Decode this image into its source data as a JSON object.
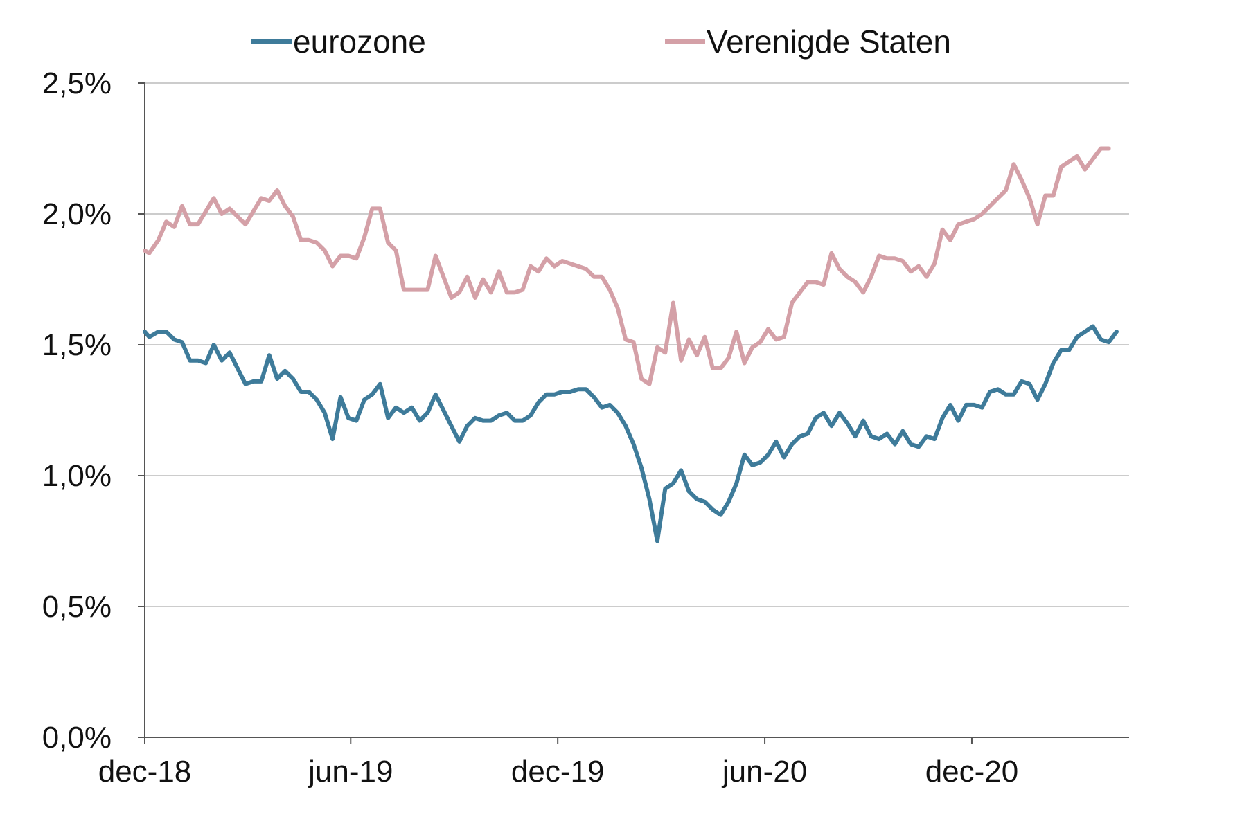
{
  "chart_data": {
    "type": "line",
    "title": "",
    "xlabel": "",
    "ylabel": "",
    "ylim": [
      0,
      0.025
    ],
    "y_ticks": [
      0,
      0.005,
      0.01,
      0.015,
      0.02,
      0.025
    ],
    "y_tick_labels": [
      "0,0%",
      "0,5%",
      "1,0%",
      "1,5%",
      "2,0%",
      "2,5%"
    ],
    "x_range": [
      "2018-12-01",
      "2021-04-19"
    ],
    "x_ticks": [
      "2018-12-01",
      "2019-06-01",
      "2019-12-01",
      "2020-06-01",
      "2020-12-01"
    ],
    "x_tick_labels": [
      "dec-18",
      "jun-19",
      "dec-19",
      "jun-20",
      "dec-20"
    ],
    "grid": true,
    "legend_position": "top",
    "series": [
      {
        "name": "eurozone",
        "color": "#3e7b9a",
        "points": [
          [
            "2018-12-01",
            0.0155
          ],
          [
            "2018-12-05",
            0.0153
          ],
          [
            "2018-12-13",
            0.0155
          ],
          [
            "2018-12-20",
            0.0155
          ],
          [
            "2018-12-27",
            0.0152
          ],
          [
            "2019-01-03",
            0.0151
          ],
          [
            "2019-01-10",
            0.0144
          ],
          [
            "2019-01-17",
            0.0144
          ],
          [
            "2019-01-24",
            0.0143
          ],
          [
            "2019-01-31",
            0.015
          ],
          [
            "2019-02-07",
            0.0144
          ],
          [
            "2019-02-14",
            0.0147
          ],
          [
            "2019-02-21",
            0.0141
          ],
          [
            "2019-02-28",
            0.0135
          ],
          [
            "2019-03-07",
            0.0136
          ],
          [
            "2019-03-14",
            0.0136
          ],
          [
            "2019-03-21",
            0.0146
          ],
          [
            "2019-03-28",
            0.0137
          ],
          [
            "2019-04-04",
            0.014
          ],
          [
            "2019-04-11",
            0.0137
          ],
          [
            "2019-04-18",
            0.0132
          ],
          [
            "2019-04-25",
            0.0132
          ],
          [
            "2019-05-02",
            0.0129
          ],
          [
            "2019-05-09",
            0.0124
          ],
          [
            "2019-05-16",
            0.0114
          ],
          [
            "2019-05-23",
            0.013
          ],
          [
            "2019-05-30",
            0.0122
          ],
          [
            "2019-06-06",
            0.0121
          ],
          [
            "2019-06-13",
            0.0129
          ],
          [
            "2019-06-20",
            0.0131
          ],
          [
            "2019-06-27",
            0.0135
          ],
          [
            "2019-07-04",
            0.0122
          ],
          [
            "2019-07-11",
            0.0126
          ],
          [
            "2019-07-18",
            0.0124
          ],
          [
            "2019-07-25",
            0.0126
          ],
          [
            "2019-08-01",
            0.0121
          ],
          [
            "2019-08-08",
            0.0124
          ],
          [
            "2019-08-15",
            0.0131
          ],
          [
            "2019-08-22",
            0.0125
          ],
          [
            "2019-08-29",
            0.0119
          ],
          [
            "2019-09-05",
            0.0113
          ],
          [
            "2019-09-12",
            0.0119
          ],
          [
            "2019-09-19",
            0.0122
          ],
          [
            "2019-09-26",
            0.0121
          ],
          [
            "2019-10-03",
            0.0121
          ],
          [
            "2019-10-10",
            0.0123
          ],
          [
            "2019-10-17",
            0.0124
          ],
          [
            "2019-10-24",
            0.0121
          ],
          [
            "2019-10-31",
            0.0121
          ],
          [
            "2019-11-07",
            0.0123
          ],
          [
            "2019-11-14",
            0.0128
          ],
          [
            "2019-11-21",
            0.0131
          ],
          [
            "2019-11-28",
            0.0131
          ],
          [
            "2019-12-05",
            0.0132
          ],
          [
            "2019-12-12",
            0.0132
          ],
          [
            "2019-12-19",
            0.0133
          ],
          [
            "2019-12-26",
            0.0133
          ],
          [
            "2020-01-02",
            0.013
          ],
          [
            "2020-01-09",
            0.0126
          ],
          [
            "2020-01-16",
            0.0127
          ],
          [
            "2020-01-23",
            0.0124
          ],
          [
            "2020-01-30",
            0.0119
          ],
          [
            "2020-02-06",
            0.0112
          ],
          [
            "2020-02-13",
            0.0103
          ],
          [
            "2020-02-20",
            0.0091
          ],
          [
            "2020-02-27",
            0.0075
          ],
          [
            "2020-03-05",
            0.0095
          ],
          [
            "2020-03-12",
            0.0097
          ],
          [
            "2020-03-19",
            0.0102
          ],
          [
            "2020-03-26",
            0.0094
          ],
          [
            "2020-04-02",
            0.0091
          ],
          [
            "2020-04-09",
            0.009
          ],
          [
            "2020-04-16",
            0.0087
          ],
          [
            "2020-04-23",
            0.0085
          ],
          [
            "2020-04-30",
            0.009
          ],
          [
            "2020-05-07",
            0.0097
          ],
          [
            "2020-05-14",
            0.0108
          ],
          [
            "2020-05-21",
            0.0104
          ],
          [
            "2020-05-28",
            0.0105
          ],
          [
            "2020-06-04",
            0.0108
          ],
          [
            "2020-06-11",
            0.0113
          ],
          [
            "2020-06-18",
            0.0107
          ],
          [
            "2020-06-25",
            0.0112
          ],
          [
            "2020-07-02",
            0.0115
          ],
          [
            "2020-07-09",
            0.0116
          ],
          [
            "2020-07-16",
            0.0122
          ],
          [
            "2020-07-23",
            0.0124
          ],
          [
            "2020-07-30",
            0.0119
          ],
          [
            "2020-08-06",
            0.0124
          ],
          [
            "2020-08-13",
            0.012
          ],
          [
            "2020-08-20",
            0.0115
          ],
          [
            "2020-08-27",
            0.0121
          ],
          [
            "2020-09-03",
            0.0115
          ],
          [
            "2020-09-10",
            0.0114
          ],
          [
            "2020-09-17",
            0.0116
          ],
          [
            "2020-09-24",
            0.0112
          ],
          [
            "2020-10-01",
            0.0117
          ],
          [
            "2020-10-08",
            0.0112
          ],
          [
            "2020-10-15",
            0.0111
          ],
          [
            "2020-10-22",
            0.0115
          ],
          [
            "2020-10-29",
            0.0114
          ],
          [
            "2020-11-05",
            0.0122
          ],
          [
            "2020-11-12",
            0.0127
          ],
          [
            "2020-11-19",
            0.0121
          ],
          [
            "2020-11-26",
            0.0127
          ],
          [
            "2020-12-03",
            0.0127
          ],
          [
            "2020-12-10",
            0.0126
          ],
          [
            "2020-12-17",
            0.0132
          ],
          [
            "2020-12-24",
            0.0133
          ],
          [
            "2020-12-31",
            0.0131
          ],
          [
            "2021-01-07",
            0.0131
          ],
          [
            "2021-01-14",
            0.0136
          ],
          [
            "2021-01-21",
            0.0135
          ],
          [
            "2021-01-28",
            0.0129
          ],
          [
            "2021-02-04",
            0.0135
          ],
          [
            "2021-02-11",
            0.0143
          ],
          [
            "2021-02-18",
            0.0148
          ],
          [
            "2021-02-25",
            0.0148
          ],
          [
            "2021-03-04",
            0.0153
          ],
          [
            "2021-03-11",
            0.0155
          ],
          [
            "2021-03-18",
            0.0157
          ],
          [
            "2021-03-25",
            0.0152
          ],
          [
            "2021-04-01",
            0.0151
          ],
          [
            "2021-04-08",
            0.0155
          ]
        ]
      },
      {
        "name": "Verenigde Staten",
        "color": "#d4a0a7",
        "points": [
          [
            "2018-12-01",
            0.0186
          ],
          [
            "2018-12-05",
            0.0185
          ],
          [
            "2018-12-13",
            0.019
          ],
          [
            "2018-12-20",
            0.0197
          ],
          [
            "2018-12-27",
            0.0195
          ],
          [
            "2019-01-03",
            0.0203
          ],
          [
            "2019-01-10",
            0.0196
          ],
          [
            "2019-01-17",
            0.0196
          ],
          [
            "2019-01-24",
            0.0201
          ],
          [
            "2019-01-31",
            0.0206
          ],
          [
            "2019-02-07",
            0.02
          ],
          [
            "2019-02-14",
            0.0202
          ],
          [
            "2019-02-21",
            0.0199
          ],
          [
            "2019-02-28",
            0.0196
          ],
          [
            "2019-03-07",
            0.0201
          ],
          [
            "2019-03-14",
            0.0206
          ],
          [
            "2019-03-21",
            0.0205
          ],
          [
            "2019-03-28",
            0.0209
          ],
          [
            "2019-04-04",
            0.0203
          ],
          [
            "2019-04-11",
            0.0199
          ],
          [
            "2019-04-18",
            0.019
          ],
          [
            "2019-04-25",
            0.019
          ],
          [
            "2019-05-02",
            0.0189
          ],
          [
            "2019-05-09",
            0.0186
          ],
          [
            "2019-05-16",
            0.018
          ],
          [
            "2019-05-23",
            0.0184
          ],
          [
            "2019-05-30",
            0.0184
          ],
          [
            "2019-06-06",
            0.0183
          ],
          [
            "2019-06-13",
            0.0191
          ],
          [
            "2019-06-20",
            0.0202
          ],
          [
            "2019-06-27",
            0.0202
          ],
          [
            "2019-07-04",
            0.0189
          ],
          [
            "2019-07-11",
            0.0186
          ],
          [
            "2019-07-18",
            0.0171
          ],
          [
            "2019-07-25",
            0.0171
          ],
          [
            "2019-08-01",
            0.0171
          ],
          [
            "2019-08-08",
            0.0171
          ],
          [
            "2019-08-15",
            0.0184
          ],
          [
            "2019-08-22",
            0.0176
          ],
          [
            "2019-08-29",
            0.0168
          ],
          [
            "2019-09-05",
            0.017
          ],
          [
            "2019-09-12",
            0.0176
          ],
          [
            "2019-09-19",
            0.0168
          ],
          [
            "2019-09-26",
            0.0175
          ],
          [
            "2019-10-03",
            0.017
          ],
          [
            "2019-10-10",
            0.0178
          ],
          [
            "2019-10-17",
            0.017
          ],
          [
            "2019-10-24",
            0.017
          ],
          [
            "2019-10-31",
            0.0171
          ],
          [
            "2019-11-07",
            0.018
          ],
          [
            "2019-11-14",
            0.0178
          ],
          [
            "2019-11-21",
            0.0183
          ],
          [
            "2019-11-28",
            0.018
          ],
          [
            "2019-12-05",
            0.0182
          ],
          [
            "2019-12-12",
            0.0181
          ],
          [
            "2019-12-19",
            0.018
          ],
          [
            "2019-12-26",
            0.0179
          ],
          [
            "2020-01-02",
            0.0176
          ],
          [
            "2020-01-09",
            0.0176
          ],
          [
            "2020-01-16",
            0.0171
          ],
          [
            "2020-01-23",
            0.0164
          ],
          [
            "2020-01-30",
            0.0152
          ],
          [
            "2020-02-06",
            0.0151
          ],
          [
            "2020-02-13",
            0.0137
          ],
          [
            "2020-02-20",
            0.0135
          ],
          [
            "2020-02-27",
            0.0149
          ],
          [
            "2020-03-05",
            0.0147
          ],
          [
            "2020-03-12",
            0.0166
          ],
          [
            "2020-03-19",
            0.0144
          ],
          [
            "2020-03-26",
            0.0152
          ],
          [
            "2020-04-02",
            0.0146
          ],
          [
            "2020-04-09",
            0.0153
          ],
          [
            "2020-04-16",
            0.0141
          ],
          [
            "2020-04-23",
            0.0141
          ],
          [
            "2020-04-30",
            0.0145
          ],
          [
            "2020-05-07",
            0.0155
          ],
          [
            "2020-05-14",
            0.0143
          ],
          [
            "2020-05-21",
            0.0149
          ],
          [
            "2020-05-28",
            0.0151
          ],
          [
            "2020-06-04",
            0.0156
          ],
          [
            "2020-06-11",
            0.0152
          ],
          [
            "2020-06-18",
            0.0153
          ],
          [
            "2020-06-25",
            0.0166
          ],
          [
            "2020-07-02",
            0.017
          ],
          [
            "2020-07-09",
            0.0174
          ],
          [
            "2020-07-16",
            0.0174
          ],
          [
            "2020-07-23",
            0.0173
          ],
          [
            "2020-07-30",
            0.0185
          ],
          [
            "2020-08-06",
            0.0179
          ],
          [
            "2020-08-13",
            0.0176
          ],
          [
            "2020-08-20",
            0.0174
          ],
          [
            "2020-08-27",
            0.017
          ],
          [
            "2020-09-03",
            0.0176
          ],
          [
            "2020-09-10",
            0.0184
          ],
          [
            "2020-09-17",
            0.0183
          ],
          [
            "2020-09-24",
            0.0183
          ],
          [
            "2020-10-01",
            0.0182
          ],
          [
            "2020-10-08",
            0.0178
          ],
          [
            "2020-10-15",
            0.018
          ],
          [
            "2020-10-22",
            0.0176
          ],
          [
            "2020-10-29",
            0.0181
          ],
          [
            "2020-11-05",
            0.0194
          ],
          [
            "2020-11-12",
            0.019
          ],
          [
            "2020-11-19",
            0.0196
          ],
          [
            "2020-11-26",
            0.0197
          ],
          [
            "2020-12-03",
            0.0198
          ],
          [
            "2020-12-10",
            0.02
          ],
          [
            "2020-12-17",
            0.0203
          ],
          [
            "2020-12-24",
            0.0206
          ],
          [
            "2020-12-31",
            0.0209
          ],
          [
            "2021-01-07",
            0.0219
          ],
          [
            "2021-01-14",
            0.0213
          ],
          [
            "2021-01-21",
            0.0206
          ],
          [
            "2021-01-28",
            0.0196
          ],
          [
            "2021-02-04",
            0.0207
          ],
          [
            "2021-02-11",
            0.0207
          ],
          [
            "2021-02-18",
            0.0218
          ],
          [
            "2021-02-25",
            0.022
          ],
          [
            "2021-03-04",
            0.0222
          ],
          [
            "2021-03-11",
            0.0217
          ],
          [
            "2021-03-18",
            0.0221
          ],
          [
            "2021-03-25",
            0.0225
          ],
          [
            "2021-04-01",
            0.0225
          ]
        ]
      }
    ]
  }
}
